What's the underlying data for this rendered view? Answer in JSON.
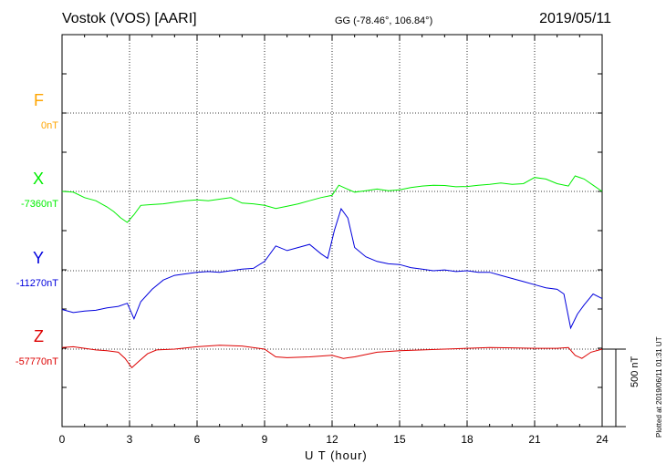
{
  "header": {
    "station": "Vostok (VOS)  [AARI]",
    "coords": "GG (-78.46°, 106.84°)",
    "date": "2019/05/11"
  },
  "side": {
    "scale_label": "500 nT",
    "plotted": "Plotted at 2019/06/11 01:31  UT"
  },
  "chart_data": {
    "type": "line",
    "xlabel": "U T (hour)",
    "xlim": [
      0,
      24
    ],
    "xticks": [
      0,
      3,
      6,
      9,
      12,
      15,
      18,
      21,
      24
    ],
    "grid": true,
    "scale_bar_nT": 500,
    "series": [
      {
        "name": "F",
        "baseline_label": "0nT",
        "color": "#ffa500",
        "x": [],
        "y": []
      },
      {
        "name": "X",
        "baseline_label": "-7360nT",
        "color": "#00ee00",
        "x": [
          0,
          0.5,
          1.0,
          1.5,
          2.0,
          2.3,
          2.6,
          2.9,
          3.2,
          3.5,
          4.0,
          4.5,
          5.0,
          5.5,
          6.0,
          6.5,
          7.0,
          7.5,
          8.0,
          8.5,
          9.0,
          9.5,
          10.0,
          10.5,
          11.0,
          11.5,
          12.0,
          12.3,
          12.6,
          13.0,
          13.5,
          14.0,
          14.5,
          15.0,
          15.5,
          16.0,
          16.5,
          17.0,
          17.5,
          18.0,
          18.5,
          19.0,
          19.5,
          20.0,
          20.5,
          21.0,
          21.5,
          22.0,
          22.5,
          22.8,
          23.2,
          23.6,
          24.0
        ],
        "y": [
          0,
          -5,
          -40,
          -60,
          -100,
          -130,
          -170,
          -200,
          -150,
          -90,
          -85,
          -80,
          -70,
          -60,
          -55,
          -60,
          -50,
          -40,
          -75,
          -80,
          -90,
          -110,
          -95,
          -80,
          -60,
          -40,
          -25,
          40,
          20,
          -5,
          5,
          15,
          5,
          10,
          25,
          35,
          40,
          38,
          30,
          32,
          40,
          45,
          55,
          45,
          50,
          90,
          80,
          50,
          35,
          100,
          80,
          40,
          0
        ]
      },
      {
        "name": "Y",
        "baseline_label": "-11270nT",
        "color": "#0000dd",
        "x": [
          0,
          0.5,
          1.0,
          1.5,
          2.0,
          2.5,
          2.9,
          3.2,
          3.5,
          4.0,
          4.5,
          5.0,
          5.5,
          6.0,
          6.5,
          7.0,
          7.5,
          8.0,
          8.5,
          9.0,
          9.5,
          10.0,
          10.5,
          11.0,
          11.5,
          11.8,
          12.1,
          12.4,
          12.7,
          13.0,
          13.5,
          14.0,
          14.5,
          15.0,
          15.5,
          16.0,
          16.5,
          17.0,
          17.5,
          18.0,
          18.5,
          19.0,
          19.5,
          20.0,
          20.5,
          21.0,
          21.5,
          22.0,
          22.3,
          22.6,
          22.9,
          23.2,
          23.6,
          24.0
        ],
        "y": [
          -250,
          -270,
          -260,
          -255,
          -240,
          -230,
          -210,
          -310,
          -200,
          -120,
          -60,
          -30,
          -20,
          -10,
          -5,
          -10,
          0,
          10,
          15,
          60,
          160,
          130,
          150,
          170,
          110,
          80,
          260,
          400,
          340,
          150,
          90,
          60,
          45,
          40,
          20,
          10,
          0,
          5,
          -5,
          0,
          -10,
          -10,
          -30,
          -50,
          -70,
          -90,
          -110,
          -120,
          -150,
          -370,
          -280,
          -220,
          -150,
          -180
        ]
      },
      {
        "name": "Z",
        "baseline_label": "-57770nT",
        "color": "#dd0000",
        "x": [
          0,
          0.5,
          1.0,
          1.5,
          2.0,
          2.5,
          2.8,
          3.1,
          3.4,
          3.8,
          4.2,
          5.0,
          6.0,
          7.0,
          8.0,
          9.0,
          9.5,
          10.0,
          11.0,
          12.0,
          12.5,
          13.0,
          14.0,
          15.0,
          16.0,
          17.0,
          18.0,
          19.0,
          20.0,
          21.0,
          22.0,
          22.5,
          22.8,
          23.1,
          23.5,
          24.0
        ],
        "y": [
          10,
          15,
          5,
          -5,
          -10,
          -20,
          -60,
          -120,
          -80,
          -30,
          -5,
          0,
          15,
          25,
          20,
          0,
          -50,
          -55,
          -50,
          -40,
          -60,
          -50,
          -20,
          -10,
          -5,
          0,
          5,
          10,
          8,
          5,
          5,
          10,
          -40,
          -60,
          -20,
          0
        ]
      }
    ]
  }
}
